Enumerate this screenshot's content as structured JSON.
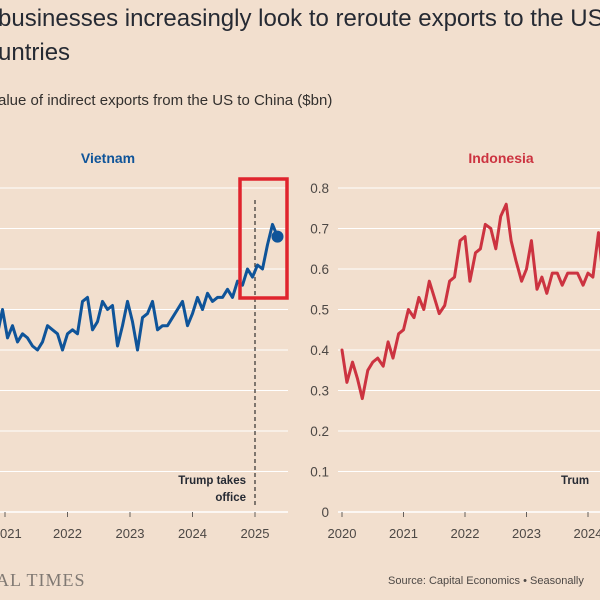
{
  "header": {
    "title_line1": "businesses increasingly look to reroute exports to the US t",
    "title_line2": "untries",
    "subtitle": "alue of indirect exports from the US to China ($bn)"
  },
  "footer": {
    "logo": "AL TIMES",
    "source": "Source: Capital Economics • Seasonally"
  },
  "colors": {
    "vietnam": "#0f5499",
    "indonesia": "#cc3340",
    "highlight_box": "#e0242d",
    "grid": "#ffffff",
    "background": "#f2dfce"
  },
  "chart_data": [
    {
      "type": "line",
      "title": "Vietnam",
      "ylim": [
        0,
        0.8
      ],
      "xlim": [
        2020.8,
        2025.5
      ],
      "x_ticks": [
        "021",
        "2022",
        "2023",
        "2024",
        "2025"
      ],
      "grid": true,
      "annotation": {
        "line1": "Trump takes",
        "line2": "office",
        "x": 2025.0
      },
      "highlight": "box around 2024.9 to 2025.4",
      "end_marker": true,
      "series": [
        {
          "x": [
            2020.8,
            2020.88,
            2020.96,
            2021.04,
            2021.12,
            2021.2,
            2021.28,
            2021.36,
            2021.44,
            2021.52,
            2021.6,
            2021.68,
            2021.76,
            2021.84,
            2021.92,
            2022.0,
            2022.08,
            2022.16,
            2022.24,
            2022.32,
            2022.4,
            2022.48,
            2022.56,
            2022.64,
            2022.72,
            2022.8,
            2022.88,
            2022.96,
            2023.04,
            2023.12,
            2023.2,
            2023.28,
            2023.36,
            2023.44,
            2023.52,
            2023.6,
            2023.68,
            2023.76,
            2023.84,
            2023.92,
            2024.0,
            2024.08,
            2024.16,
            2024.24,
            2024.32,
            2024.4,
            2024.48,
            2024.56,
            2024.64,
            2024.72,
            2024.8,
            2024.88,
            2024.96,
            2025.04,
            2025.12,
            2025.2,
            2025.28,
            2025.36
          ],
          "values": [
            0.42,
            0.44,
            0.5,
            0.43,
            0.46,
            0.42,
            0.44,
            0.43,
            0.41,
            0.4,
            0.42,
            0.46,
            0.45,
            0.44,
            0.4,
            0.44,
            0.45,
            0.44,
            0.52,
            0.53,
            0.45,
            0.47,
            0.52,
            0.5,
            0.51,
            0.41,
            0.46,
            0.52,
            0.47,
            0.4,
            0.48,
            0.49,
            0.52,
            0.45,
            0.46,
            0.46,
            0.48,
            0.5,
            0.52,
            0.46,
            0.49,
            0.53,
            0.5,
            0.54,
            0.52,
            0.53,
            0.53,
            0.55,
            0.53,
            0.57,
            0.56,
            0.6,
            0.58,
            0.61,
            0.6,
            0.66,
            0.71,
            0.68
          ]
        }
      ]
    },
    {
      "type": "line",
      "title": "Indonesia",
      "ylim": [
        0,
        0.8
      ],
      "yticks": [
        "0",
        "0.1",
        "0.2",
        "0.3",
        "0.4",
        "0.5",
        "0.6",
        "0.7",
        "0.8"
      ],
      "xlim": [
        2020,
        2024.4
      ],
      "x_ticks": [
        "2020",
        "2021",
        "2022",
        "2023",
        "2024"
      ],
      "grid": true,
      "annotation": {
        "line1": "Trum",
        "line2": ""
      },
      "series": [
        {
          "x": [
            2020.0,
            2020.08,
            2020.17,
            2020.25,
            2020.33,
            2020.42,
            2020.5,
            2020.58,
            2020.67,
            2020.75,
            2020.83,
            2020.92,
            2021.0,
            2021.08,
            2021.17,
            2021.25,
            2021.33,
            2021.42,
            2021.5,
            2021.58,
            2021.67,
            2021.75,
            2021.83,
            2021.92,
            2022.0,
            2022.08,
            2022.17,
            2022.25,
            2022.33,
            2022.42,
            2022.5,
            2022.58,
            2022.67,
            2022.75,
            2022.83,
            2022.92,
            2023.0,
            2023.08,
            2023.17,
            2023.25,
            2023.33,
            2023.42,
            2023.5,
            2023.58,
            2023.67,
            2023.75,
            2023.83,
            2023.92,
            2024.0,
            2024.08,
            2024.17,
            2024.25
          ],
          "values": [
            0.4,
            0.32,
            0.37,
            0.33,
            0.28,
            0.35,
            0.37,
            0.38,
            0.36,
            0.42,
            0.38,
            0.44,
            0.45,
            0.5,
            0.48,
            0.53,
            0.5,
            0.57,
            0.53,
            0.49,
            0.51,
            0.57,
            0.58,
            0.67,
            0.68,
            0.57,
            0.64,
            0.65,
            0.71,
            0.7,
            0.65,
            0.73,
            0.76,
            0.67,
            0.62,
            0.57,
            0.6,
            0.67,
            0.55,
            0.58,
            0.54,
            0.59,
            0.59,
            0.56,
            0.59,
            0.59,
            0.59,
            0.56,
            0.59,
            0.58,
            0.69,
            0.57
          ]
        }
      ]
    }
  ]
}
